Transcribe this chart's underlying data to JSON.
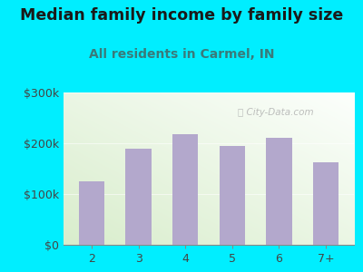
{
  "title": "Median family income by family size",
  "subtitle": "All residents in Carmel, IN",
  "categories": [
    "2",
    "3",
    "4",
    "5",
    "6",
    "7+"
  ],
  "values": [
    125000,
    190000,
    218000,
    195000,
    210000,
    162000
  ],
  "bar_color": "#b3a8cc",
  "background_outer": "#00eeff",
  "title_color": "#1a1a1a",
  "subtitle_color": "#3a7a7a",
  "tick_color": "#444444",
  "ylim": [
    0,
    300000
  ],
  "yticks": [
    0,
    100000,
    200000,
    300000
  ],
  "ytick_labels": [
    "$0",
    "$100k",
    "$200k",
    "$300k"
  ],
  "title_fontsize": 12.5,
  "subtitle_fontsize": 10,
  "watermark": "City-Data.com"
}
